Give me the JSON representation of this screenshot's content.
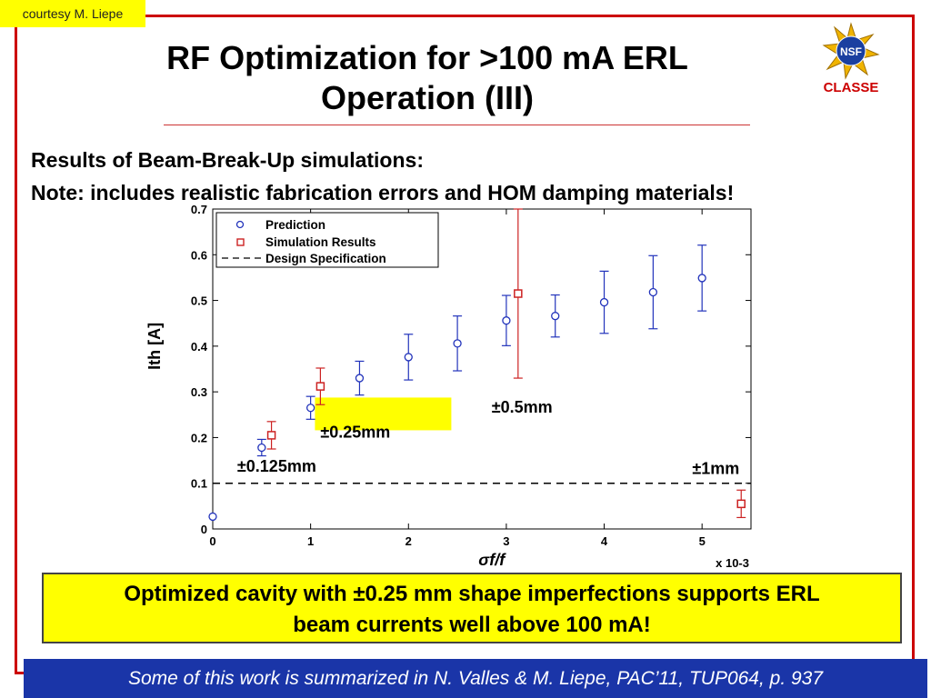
{
  "header": {
    "courtesy": "courtesy M. Liepe",
    "title_line1": "RF Optimization for >100 mA ERL",
    "title_line2": "Operation (III)",
    "logo_label": "CLASSE",
    "logo_mark": "NSF"
  },
  "subtitle": {
    "line1": "Results of Beam-Break-Up simulations:",
    "line2": "Note: includes realistic fabrication errors and HOM damping materials!"
  },
  "chart_data": {
    "type": "scatter",
    "xlabel": "σf/f",
    "ylabel": "Ith [A]",
    "x_multiplier": "x 10-3",
    "xlim": [
      0,
      5.5
    ],
    "ylim": [
      0,
      0.7
    ],
    "xticks": [
      0,
      1,
      2,
      3,
      4,
      5
    ],
    "yticks": [
      0,
      0.1,
      0.2,
      0.3,
      0.4,
      0.5,
      0.6,
      0.7
    ],
    "legend_position": "top-left",
    "legend": [
      "Prediction",
      "Simulation Results",
      "Design Specification"
    ],
    "series": [
      {
        "name": "Prediction",
        "color": "#2233bb",
        "marker": "circle",
        "x": [
          0,
          0.5,
          1.0,
          1.5,
          2.0,
          2.5,
          3.0,
          3.5,
          4.0,
          4.5,
          5.0
        ],
        "y": [
          0.027,
          0.178,
          0.265,
          0.33,
          0.376,
          0.406,
          0.456,
          0.466,
          0.496,
          0.518,
          0.549
        ],
        "err": [
          0,
          0.018,
          0.025,
          0.037,
          0.05,
          0.06,
          0.055,
          0.046,
          0.068,
          0.08,
          0.072
        ]
      },
      {
        "name": "Simulation Results",
        "color": "#cc2222",
        "marker": "square",
        "x": [
          0.6,
          1.1,
          3.12,
          5.4
        ],
        "y": [
          0.205,
          0.312,
          0.515,
          0.055
        ],
        "err": [
          0.03,
          0.04,
          0.185,
          0.03
        ]
      },
      {
        "name": "Design Specification",
        "color": "#000000",
        "style": "dashed",
        "x": [
          0,
          5.5
        ],
        "y": [
          0.1,
          0.1
        ]
      }
    ],
    "annotations": [
      {
        "text": "±0.125mm",
        "x": 0.25,
        "y": 0.125
      },
      {
        "text": "±0.25mm",
        "x": 1.1,
        "y": 0.2,
        "highlight": "#ffff00"
      },
      {
        "text": "±0.5mm",
        "x": 2.85,
        "y": 0.255
      },
      {
        "text": "±1mm",
        "x": 4.9,
        "y": 0.12
      }
    ]
  },
  "callout": {
    "line1": "Optimized cavity with ±0.25 mm shape imperfections supports ERL",
    "line2": "beam currents well above 100 mA!"
  },
  "footer": {
    "text": "Some of this work is summarized in N. Valles & M. Liepe, PAC’11, TUP064, p. 937"
  }
}
